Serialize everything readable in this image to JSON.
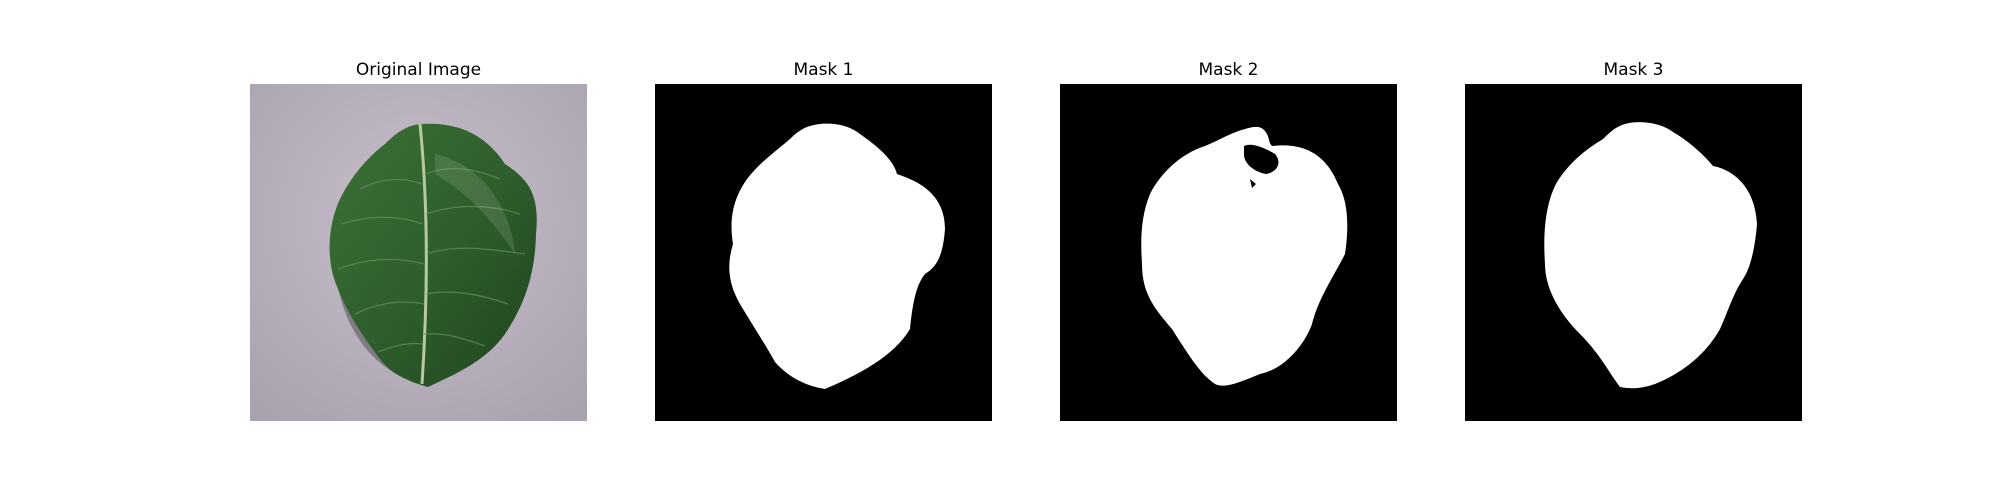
{
  "panels": [
    {
      "title": "Original Image",
      "kind": "photo"
    },
    {
      "title": "Mask 1",
      "kind": "mask"
    },
    {
      "title": "Mask 2",
      "kind": "mask"
    },
    {
      "title": "Mask 3",
      "kind": "mask"
    }
  ],
  "colors": {
    "photo_background": "#b9b1bd",
    "leaf": "#2f5e2e",
    "leaf_vein": "#b8c9a0",
    "mask_background": "#000000",
    "mask_foreground": "#ffffff"
  }
}
